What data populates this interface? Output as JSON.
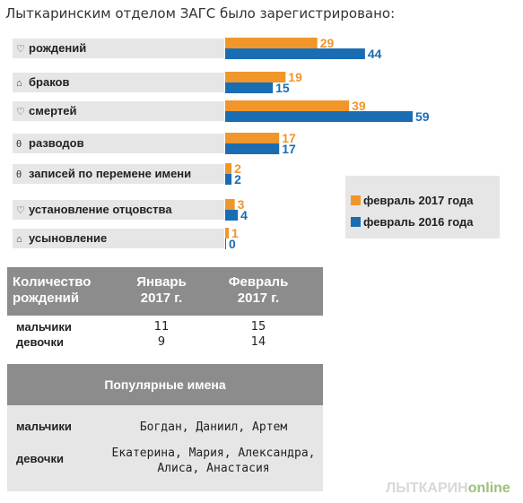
{
  "title": "Лыткаринским отделом ЗАГС было зарегистрировано:",
  "colors": {
    "y2017": "#f0962a",
    "y2016": "#1a6db3",
    "label_bg": "#e6e6e6",
    "header_bg": "#8c8c8c"
  },
  "chart_data": {
    "type": "bar",
    "orientation": "horizontal",
    "categories": [
      "рождений",
      "браков",
      "смертей",
      "разводов",
      "записей по перемене имени",
      "установление отцовства",
      "усыновление"
    ],
    "category_icons": [
      "♡",
      "⌂",
      "♡",
      "θ",
      "θ",
      "♡",
      "⌂"
    ],
    "series": [
      {
        "name": "февраль 2017 года",
        "values": [
          29,
          19,
          39,
          17,
          2,
          3,
          1
        ]
      },
      {
        "name": "февраль 2016 года",
        "values": [
          44,
          15,
          59,
          17,
          2,
          4,
          0
        ]
      }
    ],
    "xlim": [
      0,
      59
    ],
    "legend_position": "right"
  },
  "table": {
    "header": {
      "col1": "Количество рождений",
      "col2": "Январь 2017 г.",
      "col3": "Февраль 2017 г."
    },
    "rows": [
      {
        "label": "мальчики",
        "jan": "11",
        "feb": "15"
      },
      {
        "label": "девочки",
        "jan": "9",
        "feb": "14"
      }
    ],
    "names_header": "Популярные имена",
    "names": [
      {
        "label": "мальчики",
        "value": "Богдан, Даниил, Артем"
      },
      {
        "label": "девочки",
        "value": "Екатерина, Мария, Александра, Алиса, Анастасия"
      }
    ]
  },
  "logo": {
    "main": "ЛЫТКАРИН",
    "accent": "online"
  }
}
